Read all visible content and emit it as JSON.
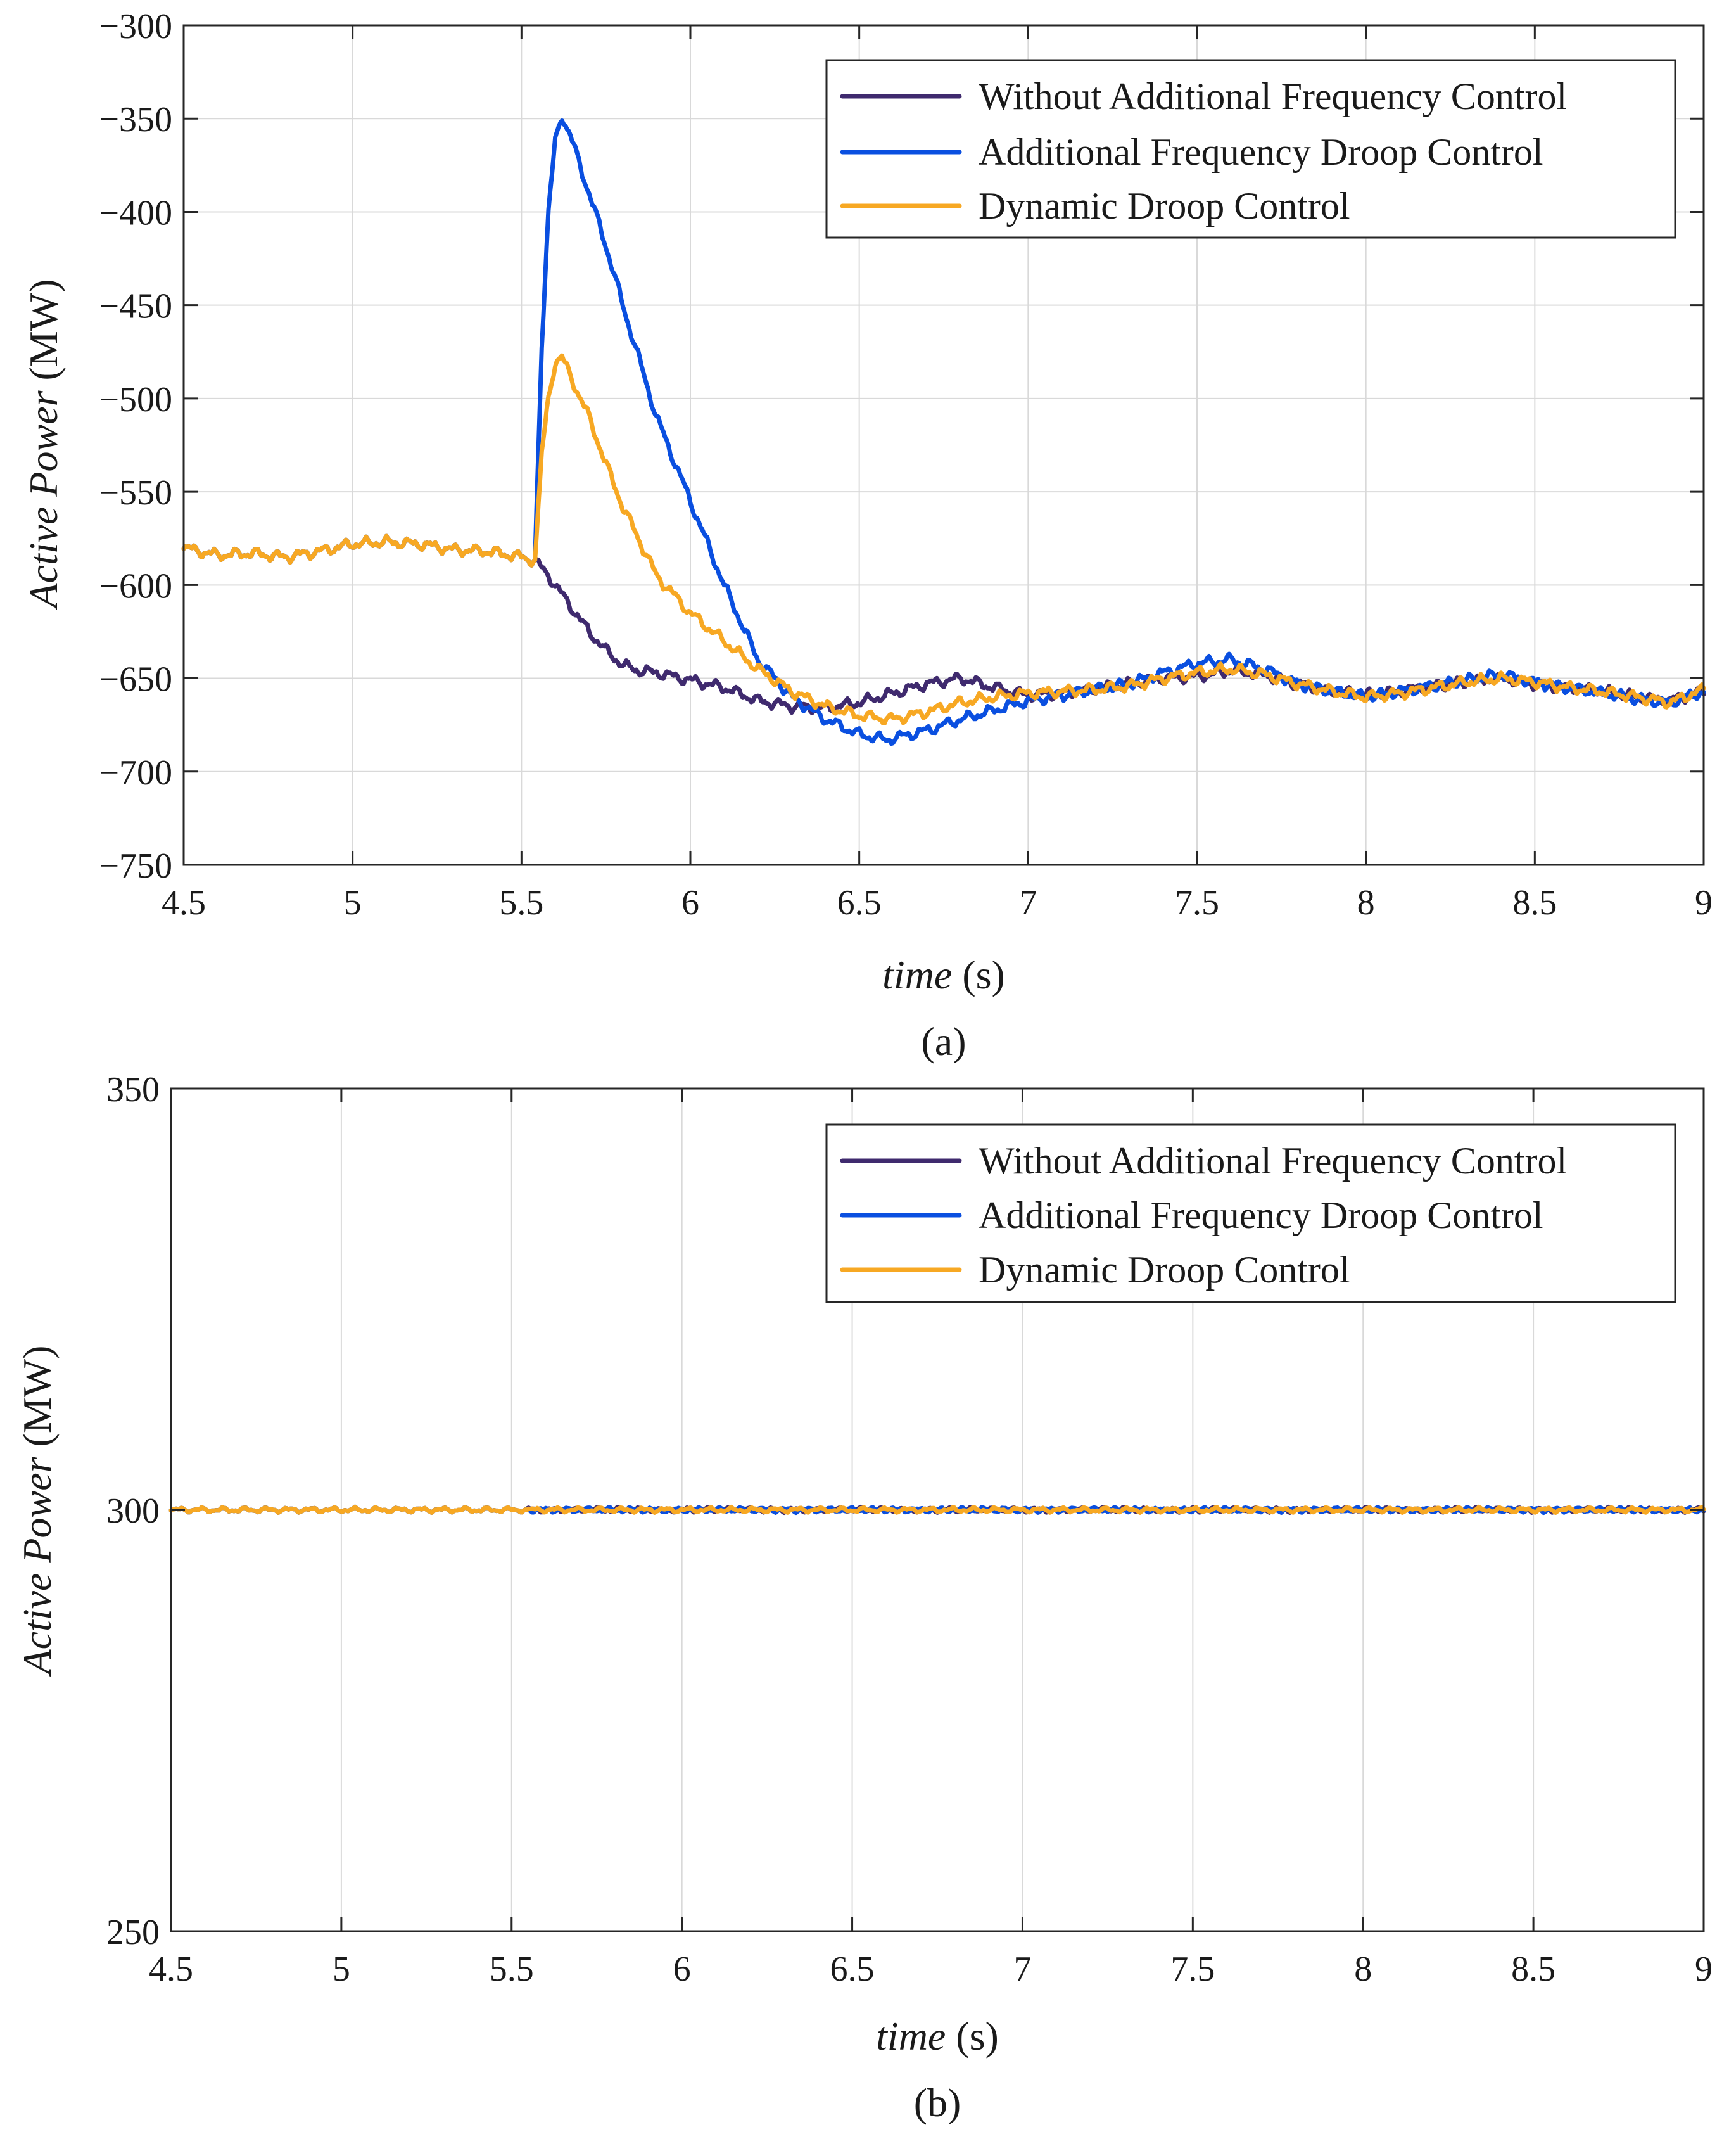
{
  "colors": {
    "without": "#3f2a6e",
    "droop": "#0a4fe0",
    "dynamic": "#f7a823"
  },
  "chart_data": [
    {
      "type": "line",
      "panel": "a",
      "caption": "(a)",
      "xlabel_italic": "time",
      "xlabel_unit": "(s)",
      "ylabel_italic": "Active Power",
      "ylabel_unit": "(MW)",
      "xlim": [
        4.5,
        9
      ],
      "ylim": [
        -750,
        -300
      ],
      "xticks": [
        4.5,
        5,
        5.5,
        6,
        6.5,
        7,
        7.5,
        8,
        8.5,
        9
      ],
      "xtick_labels": [
        "4.5",
        "5",
        "5.5",
        "6",
        "6.5",
        "7",
        "7.5",
        "8",
        "8.5",
        "9"
      ],
      "yticks": [
        -300,
        -350,
        -400,
        -450,
        -500,
        -550,
        -600,
        -650,
        -700,
        -750
      ],
      "ytick_labels": [
        "−300",
        "−350",
        "−400",
        "−450",
        "−500",
        "−550",
        "−600",
        "−650",
        "−700",
        "−750"
      ],
      "grid": true,
      "legend_position": "top-right",
      "series": [
        {
          "key": "without",
          "name": "Without Additional Frequency Control",
          "x": [
            4.5,
            4.6,
            4.7,
            4.8,
            4.9,
            5.0,
            5.1,
            5.2,
            5.3,
            5.4,
            5.5,
            5.54,
            5.58,
            5.62,
            5.66,
            5.7,
            5.75,
            5.8,
            5.85,
            5.9,
            6.0,
            6.1,
            6.2,
            6.3,
            6.4,
            6.5,
            6.6,
            6.7,
            6.8,
            6.9,
            7.0,
            7.1,
            7.2,
            7.3,
            7.4,
            7.5,
            7.6,
            7.7,
            7.8,
            7.9,
            8.0,
            8.1,
            8.2,
            8.3,
            8.4,
            8.5,
            8.6,
            8.7,
            8.8,
            8.9,
            9.0
          ],
          "y": [
            -580,
            -584,
            -583,
            -585,
            -582,
            -578,
            -577,
            -578,
            -581,
            -582,
            -585,
            -587,
            -595,
            -605,
            -615,
            -625,
            -635,
            -643,
            -646,
            -647,
            -651,
            -655,
            -662,
            -665,
            -666,
            -663,
            -658,
            -653,
            -650,
            -655,
            -659,
            -658,
            -656,
            -653,
            -650,
            -649,
            -646,
            -648,
            -653,
            -657,
            -659,
            -657,
            -654,
            -652,
            -650,
            -653,
            -655,
            -657,
            -660,
            -662,
            -657
          ]
        },
        {
          "key": "droop",
          "name": "Additional Frequency Droop Control",
          "x": [
            4.5,
            4.6,
            4.7,
            4.8,
            4.9,
            5.0,
            5.1,
            5.2,
            5.3,
            5.4,
            5.5,
            5.54,
            5.56,
            5.58,
            5.6,
            5.62,
            5.65,
            5.7,
            5.75,
            5.8,
            5.9,
            6.0,
            6.1,
            6.2,
            6.3,
            6.4,
            6.5,
            6.58,
            6.7,
            6.8,
            6.9,
            7.0,
            7.1,
            7.2,
            7.3,
            7.4,
            7.5,
            7.6,
            7.7,
            7.8,
            7.9,
            8.0,
            8.1,
            8.2,
            8.3,
            8.4,
            8.5,
            8.6,
            8.7,
            8.8,
            8.9,
            9.0
          ],
          "y": [
            -580,
            -584,
            -583,
            -585,
            -582,
            -578,
            -577,
            -578,
            -581,
            -582,
            -585,
            -587,
            -470,
            -400,
            -362,
            -348,
            -362,
            -390,
            -418,
            -450,
            -510,
            -555,
            -600,
            -640,
            -660,
            -672,
            -680,
            -683,
            -678,
            -672,
            -667,
            -662,
            -659,
            -656,
            -653,
            -647,
            -642,
            -640,
            -645,
            -653,
            -657,
            -660,
            -657,
            -654,
            -651,
            -648,
            -652,
            -655,
            -658,
            -661,
            -663,
            -657
          ]
        },
        {
          "key": "dynamic",
          "name": "Dynamic Droop Control",
          "x": [
            4.5,
            4.6,
            4.7,
            4.8,
            4.9,
            5.0,
            5.1,
            5.2,
            5.3,
            5.4,
            5.5,
            5.54,
            5.56,
            5.58,
            5.6,
            5.62,
            5.65,
            5.7,
            5.75,
            5.8,
            5.9,
            6.0,
            6.1,
            6.2,
            6.3,
            6.4,
            6.5,
            6.6,
            6.7,
            6.8,
            6.9,
            7.0,
            7.1,
            7.2,
            7.3,
            7.4,
            7.5,
            7.6,
            7.7,
            7.8,
            7.9,
            8.0,
            8.1,
            8.2,
            8.3,
            8.4,
            8.5,
            8.6,
            8.7,
            8.8,
            8.9,
            9.0
          ],
          "y": [
            -580,
            -584,
            -583,
            -585,
            -582,
            -578,
            -577,
            -578,
            -581,
            -582,
            -585,
            -587,
            -530,
            -500,
            -480,
            -478,
            -490,
            -510,
            -535,
            -558,
            -595,
            -615,
            -630,
            -645,
            -657,
            -665,
            -670,
            -672,
            -668,
            -663,
            -660,
            -658,
            -657,
            -656,
            -654,
            -650,
            -647,
            -645,
            -648,
            -653,
            -657,
            -660,
            -658,
            -655,
            -652,
            -650,
            -652,
            -655,
            -657,
            -660,
            -663,
            -656
          ]
        }
      ]
    },
    {
      "type": "line",
      "panel": "b",
      "caption": "(b)",
      "xlabel_italic": "time",
      "xlabel_unit": "(s)",
      "ylabel_italic": "Active Power",
      "ylabel_unit": "(MW)",
      "xlim": [
        4.5,
        9
      ],
      "ylim": [
        250,
        350
      ],
      "xticks": [
        4.5,
        5,
        5.5,
        6,
        6.5,
        7,
        7.5,
        8,
        8.5,
        9
      ],
      "xtick_labels": [
        "4.5",
        "5",
        "5.5",
        "6",
        "6.5",
        "7",
        "7.5",
        "8",
        "8.5",
        "9"
      ],
      "yticks": [
        350,
        300,
        250
      ],
      "ytick_labels": [
        "350",
        "300",
        "250"
      ],
      "grid": true,
      "legend_position": "top-right",
      "series": [
        {
          "key": "without",
          "name": "Without Additional Frequency Control",
          "x": [
            4.5,
            9.0
          ],
          "y": [
            300,
            300
          ]
        },
        {
          "key": "droop",
          "name": "Additional Frequency Droop Control",
          "x": [
            4.5,
            9.0
          ],
          "y": [
            300,
            300
          ]
        },
        {
          "key": "dynamic",
          "name": "Dynamic Droop Control",
          "x": [
            4.5,
            9.0
          ],
          "y": [
            300,
            300
          ]
        }
      ]
    }
  ]
}
